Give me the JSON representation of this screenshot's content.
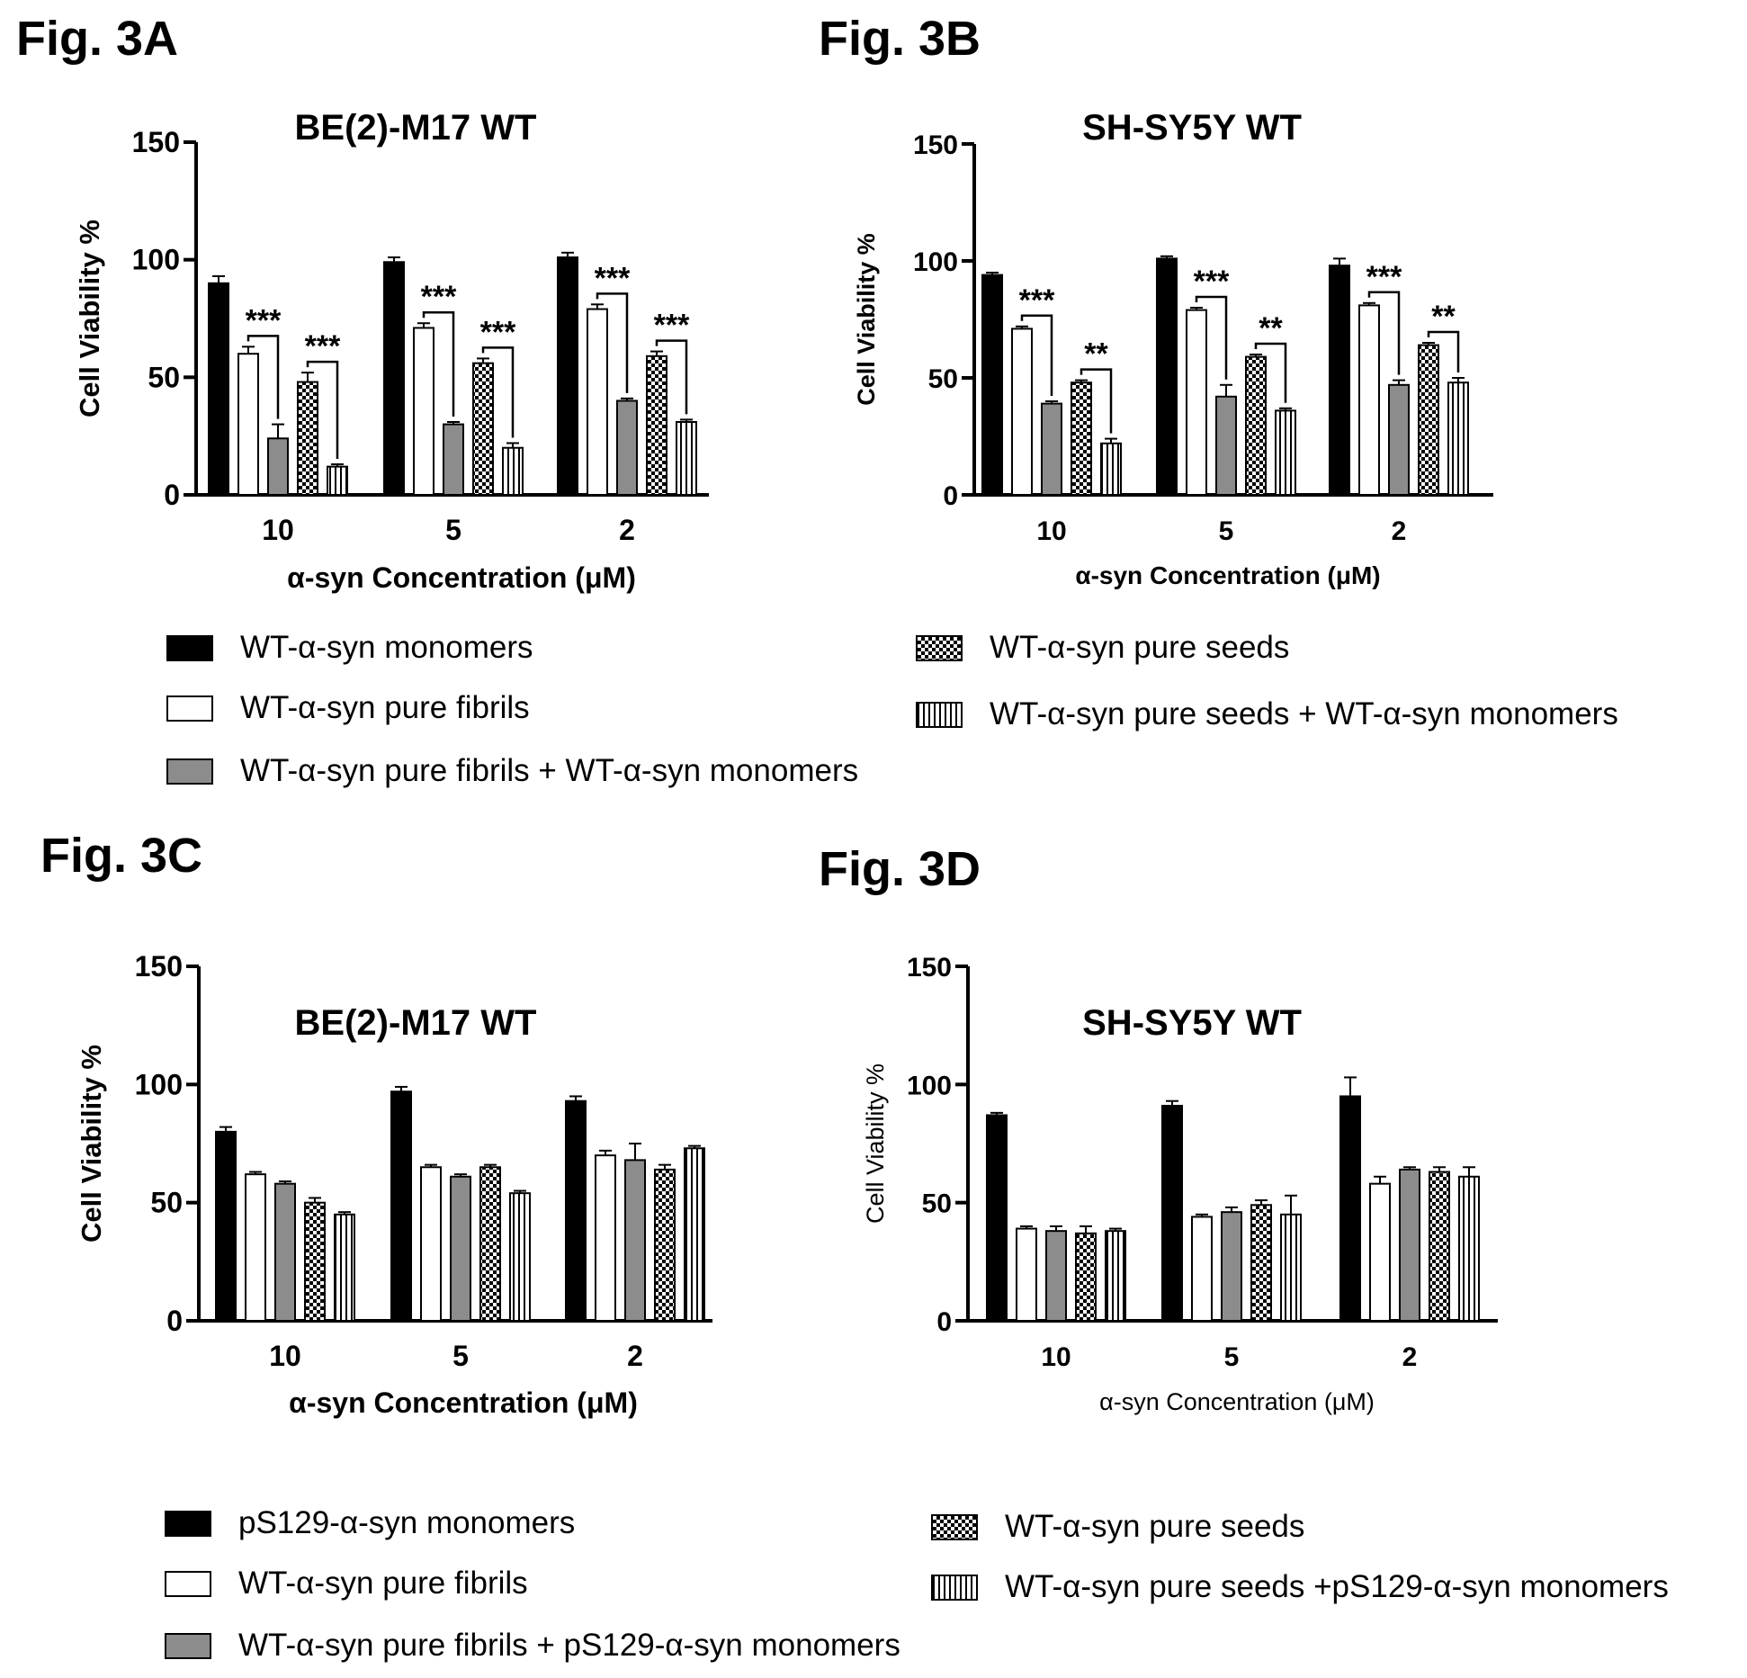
{
  "figure_labels": {
    "a": "Fig. 3A",
    "b": "Fig. 3B",
    "c": "Fig. 3C",
    "d": "Fig. 3D"
  },
  "colors": {
    "monomers": "#000000",
    "fibrils": "#ffffff",
    "fibrils_plus_monomers": "#8c8c8c",
    "seeds": "checker",
    "seeds_plus_monomers": "vertical-stripes"
  },
  "legend_top": [
    "WT-α-syn monomers",
    "WT-α-syn pure fibrils",
    "WT-α-syn pure fibrils + WT-α-syn monomers",
    "WT-α-syn pure seeds",
    "WT-α-syn pure seeds + WT-α-syn monomers"
  ],
  "legend_bottom": [
    "pS129-α-syn monomers",
    "WT-α-syn pure fibrils",
    "WT-α-syn pure fibrils + pS129-α-syn monomers",
    "WT-α-syn pure seeds",
    "WT-α-syn pure seeds +pS129-α-syn monomers"
  ],
  "chart_data": [
    {
      "panel": "3A",
      "type": "bar",
      "title": "BE(2)-M17 WT",
      "xlabel": "α-syn Concentration (μM)",
      "ylabel": "Cell Viability %",
      "ylim": [
        0,
        150
      ],
      "yticks": [
        0,
        50,
        100,
        150
      ],
      "categories": [
        "10",
        "5",
        "2"
      ],
      "series": [
        {
          "name": "WT-α-syn monomers",
          "values": [
            90,
            99,
            101
          ],
          "errors": [
            3,
            2,
            2
          ]
        },
        {
          "name": "WT-α-syn pure fibrils",
          "values": [
            60,
            71,
            79
          ],
          "errors": [
            3,
            2,
            2
          ]
        },
        {
          "name": "WT-α-syn pure fibrils + WT-α-syn monomers",
          "values": [
            24,
            30,
            40
          ],
          "errors": [
            6,
            1,
            1
          ]
        },
        {
          "name": "WT-α-syn pure seeds",
          "values": [
            48,
            56,
            59
          ],
          "errors": [
            4,
            2,
            2
          ]
        },
        {
          "name": "WT-α-syn pure seeds + WT-α-syn monomers",
          "values": [
            12,
            20,
            31
          ],
          "errors": [
            1,
            2,
            1
          ]
        }
      ],
      "significance": [
        {
          "category": 0,
          "from": 1,
          "to": 2,
          "label": "***"
        },
        {
          "category": 0,
          "from": 3,
          "to": 4,
          "label": "***"
        },
        {
          "category": 1,
          "from": 1,
          "to": 2,
          "label": "***"
        },
        {
          "category": 1,
          "from": 3,
          "to": 4,
          "label": "***"
        },
        {
          "category": 2,
          "from": 1,
          "to": 2,
          "label": "***"
        },
        {
          "category": 2,
          "from": 3,
          "to": 4,
          "label": "***"
        }
      ]
    },
    {
      "panel": "3B",
      "type": "bar",
      "title": "SH-SY5Y WT",
      "xlabel": "α-syn Concentration (μM)",
      "ylabel": "Cell Viability %",
      "ylim": [
        0,
        150
      ],
      "yticks": [
        0,
        50,
        100,
        150
      ],
      "categories": [
        "10",
        "5",
        "2"
      ],
      "series": [
        {
          "name": "WT-α-syn monomers",
          "values": [
            94,
            101,
            98
          ],
          "errors": [
            1,
            1,
            3
          ]
        },
        {
          "name": "WT-α-syn pure fibrils",
          "values": [
            71,
            79,
            81
          ],
          "errors": [
            1,
            1,
            1
          ]
        },
        {
          "name": "WT-α-syn pure fibrils + WT-α-syn monomers",
          "values": [
            39,
            42,
            47
          ],
          "errors": [
            1,
            5,
            2
          ]
        },
        {
          "name": "WT-α-syn pure seeds",
          "values": [
            48,
            59,
            64
          ],
          "errors": [
            1,
            1,
            1
          ]
        },
        {
          "name": "WT-α-syn pure seeds + WT-α-syn monomers",
          "values": [
            22,
            36,
            48
          ],
          "errors": [
            2,
            1,
            2
          ]
        }
      ],
      "significance": [
        {
          "category": 0,
          "from": 1,
          "to": 2,
          "label": "***"
        },
        {
          "category": 0,
          "from": 3,
          "to": 4,
          "label": "**"
        },
        {
          "category": 1,
          "from": 1,
          "to": 2,
          "label": "***"
        },
        {
          "category": 1,
          "from": 3,
          "to": 4,
          "label": "**"
        },
        {
          "category": 2,
          "from": 1,
          "to": 2,
          "label": "***"
        },
        {
          "category": 2,
          "from": 3,
          "to": 4,
          "label": "**"
        }
      ]
    },
    {
      "panel": "3C",
      "type": "bar",
      "title": "BE(2)-M17 WT",
      "xlabel": "α-syn Concentration (μM)",
      "ylabel": "Cell Viability %",
      "ylim": [
        0,
        150
      ],
      "yticks": [
        0,
        50,
        100,
        150
      ],
      "categories": [
        "10",
        "5",
        "2"
      ],
      "series": [
        {
          "name": "pS129-α-syn monomers",
          "values": [
            80,
            97,
            93
          ],
          "errors": [
            2,
            2,
            2
          ]
        },
        {
          "name": "WT-α-syn pure fibrils",
          "values": [
            62,
            65,
            70
          ],
          "errors": [
            1,
            1,
            2
          ]
        },
        {
          "name": "WT-α-syn pure fibrils + pS129-α-syn monomers",
          "values": [
            58,
            61,
            68
          ],
          "errors": [
            1,
            1,
            7
          ]
        },
        {
          "name": "WT-α-syn pure seeds",
          "values": [
            50,
            65,
            64
          ],
          "errors": [
            2,
            1,
            2
          ]
        },
        {
          "name": "WT-α-syn pure seeds +pS129-α-syn monomers",
          "values": [
            45,
            54,
            73
          ],
          "errors": [
            1,
            1,
            1
          ]
        }
      ],
      "significance": []
    },
    {
      "panel": "3D",
      "type": "bar",
      "title": "SH-SY5Y WT",
      "xlabel": "α-syn Concentration (μM)",
      "ylabel": "Cell Viability %",
      "ylim": [
        0,
        150
      ],
      "yticks": [
        0,
        50,
        100,
        150
      ],
      "categories": [
        "10",
        "5",
        "2"
      ],
      "series": [
        {
          "name": "pS129-α-syn monomers",
          "values": [
            87,
            91,
            95
          ],
          "errors": [
            1,
            2,
            8
          ]
        },
        {
          "name": "WT-α-syn pure fibrils",
          "values": [
            39,
            44,
            58
          ],
          "errors": [
            1,
            1,
            3
          ]
        },
        {
          "name": "WT-α-syn pure fibrils + pS129-α-syn monomers",
          "values": [
            38,
            46,
            64
          ],
          "errors": [
            2,
            2,
            1
          ]
        },
        {
          "name": "WT-α-syn pure seeds",
          "values": [
            37,
            49,
            63
          ],
          "errors": [
            3,
            2,
            2
          ]
        },
        {
          "name": "WT-α-syn pure seeds +pS129-α-syn monomers",
          "values": [
            38,
            45,
            61
          ],
          "errors": [
            1,
            8,
            4
          ]
        }
      ],
      "significance": []
    }
  ]
}
